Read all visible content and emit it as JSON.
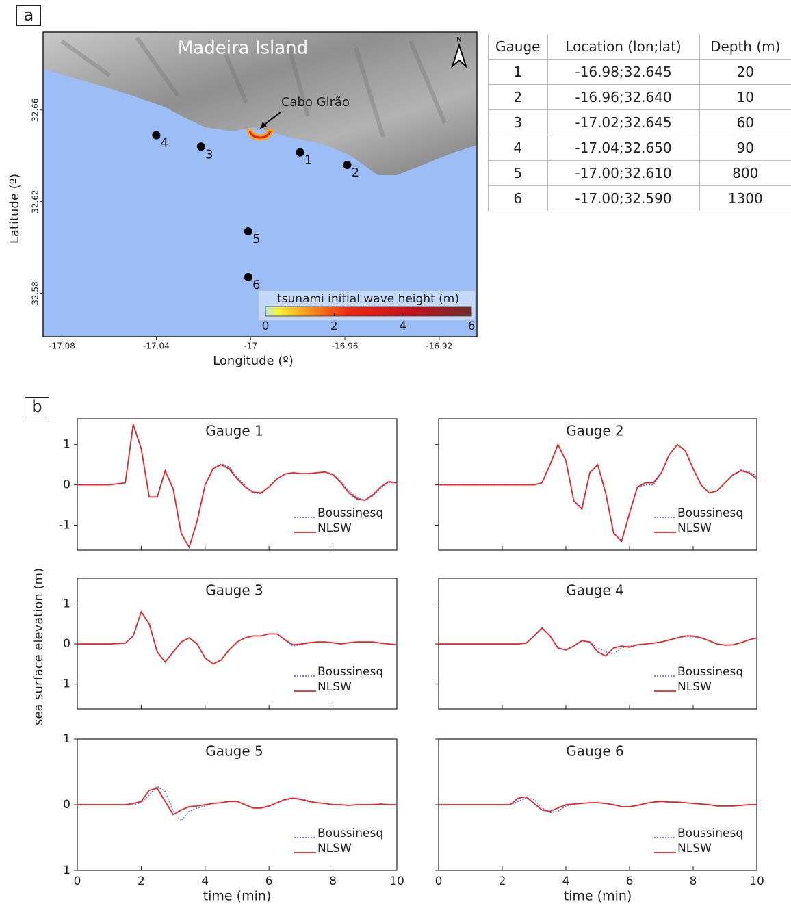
{
  "panel_labels": [
    "a",
    "b"
  ],
  "shared_y_label": "sea surface elevation (m)",
  "table": {
    "header": [
      "Gauge",
      "Location (lon;lat)",
      "Depth (m)"
    ],
    "rows": [
      [
        "1",
        "-16.98;32.645",
        "20"
      ],
      [
        "2",
        "-16.96;32.640",
        "10"
      ],
      [
        "3",
        "-17.02;32.645",
        "60"
      ],
      [
        "4",
        "-17.04;32.650",
        "90"
      ],
      [
        "5",
        "-17.00;32.610",
        "800"
      ],
      [
        "6",
        "-17.00;32.590",
        "1300"
      ]
    ]
  },
  "chart_data": [
    {
      "type": "scatter",
      "title": "Madeira Island",
      "annotation": "Cabo Girão",
      "north_label": "N",
      "x_label": "Longitude (º)",
      "y_label": "Latitude (º)",
      "xlim": [
        -17.088,
        -16.904
      ],
      "ylim": [
        32.561,
        32.694
      ],
      "xticks": [
        -17.08,
        -17.04,
        -17,
        -16.96,
        -16.92
      ],
      "yticks": [
        32.58,
        32.62,
        32.66
      ],
      "color": "#000000",
      "labels": [
        "1",
        "2",
        "3",
        "4",
        "5",
        "6"
      ],
      "x": [
        -16.979,
        -16.959,
        -17.021,
        -17.04,
        -17.001,
        -17.001
      ],
      "y": [
        32.6415,
        32.636,
        32.644,
        32.649,
        32.607,
        32.587
      ],
      "colorbar": {
        "title": "tsunami initial wave height (m)",
        "lim": [
          0,
          6
        ],
        "ticks": [
          0,
          2,
          4,
          6
        ]
      }
    },
    {
      "type": "line",
      "title": "Gauge 1",
      "xlim": [
        0,
        10
      ],
      "xticks": [
        0,
        2,
        4,
        6,
        8,
        10
      ],
      "xtick_labels": false,
      "ylim": [
        -1.62,
        1.64
      ],
      "yticks": [
        -1,
        0,
        1
      ],
      "ytick_labels": true,
      "x": [
        0,
        1,
        1.5,
        1.75,
        2,
        2.25,
        2.5,
        2.75,
        3,
        3.25,
        3.5,
        3.75,
        4,
        4.25,
        4.5,
        4.75,
        5,
        5.25,
        5.5,
        5.75,
        6,
        6.25,
        6.5,
        6.75,
        7,
        7.25,
        7.5,
        7.75,
        8,
        8.25,
        8.5,
        8.75,
        9,
        9.25,
        9.5,
        9.75,
        10
      ],
      "series": [
        {
          "name": "Boussinesq",
          "color": "#5b6cf0",
          "style": "dotted",
          "values": [
            0,
            0,
            0.05,
            1.5,
            0.9,
            -0.3,
            -0.3,
            0.35,
            -0.1,
            -1.2,
            -1.55,
            -0.9,
            0.0,
            0.42,
            0.52,
            0.45,
            0.18,
            -0.02,
            -0.2,
            -0.22,
            -0.05,
            0.15,
            0.27,
            0.3,
            0.28,
            0.28,
            0.3,
            0.32,
            0.27,
            0.08,
            -0.15,
            -0.32,
            -0.38,
            -0.27,
            -0.08,
            0.06,
            0.05
          ]
        },
        {
          "name": "NLSW",
          "color": "#e8262a",
          "style": "solid",
          "values": [
            0,
            0,
            0.05,
            1.5,
            0.9,
            -0.3,
            -0.3,
            0.35,
            -0.1,
            -1.2,
            -1.55,
            -0.9,
            0.0,
            0.4,
            0.5,
            0.4,
            0.15,
            -0.05,
            -0.18,
            -0.2,
            -0.05,
            0.15,
            0.27,
            0.3,
            0.28,
            0.28,
            0.3,
            0.32,
            0.25,
            0.05,
            -0.2,
            -0.35,
            -0.38,
            -0.25,
            -0.05,
            0.08,
            0.05
          ]
        }
      ]
    },
    {
      "type": "line",
      "title": "Gauge 2",
      "xlim": [
        0,
        10
      ],
      "xticks": [
        0,
        2,
        4,
        6,
        8,
        10
      ],
      "xtick_labels": false,
      "ylim": [
        -1.62,
        1.64
      ],
      "yticks": [
        -1,
        0,
        1
      ],
      "ytick_labels": false,
      "x": [
        0,
        1,
        1.5,
        1.75,
        2,
        2.25,
        2.5,
        2.75,
        3,
        3.25,
        3.5,
        3.75,
        4,
        4.25,
        4.5,
        4.75,
        5,
        5.25,
        5.5,
        5.75,
        6,
        6.25,
        6.5,
        6.75,
        7,
        7.25,
        7.5,
        7.75,
        8,
        8.25,
        8.5,
        8.75,
        9,
        9.25,
        9.5,
        9.75,
        10
      ],
      "series": [
        {
          "name": "Boussinesq",
          "color": "#5b6cf0",
          "style": "dotted",
          "values": [
            0,
            0,
            0,
            0,
            0,
            0,
            0,
            0,
            0,
            0.05,
            0.5,
            1.0,
            0.6,
            -0.4,
            -0.55,
            0.3,
            0.5,
            -0.2,
            -1.2,
            -1.4,
            -0.7,
            -0.05,
            0.0,
            0.0,
            0.3,
            0.75,
            1.0,
            0.85,
            0.4,
            0.0,
            -0.2,
            -0.15,
            0.05,
            0.25,
            0.37,
            0.33,
            0.2
          ]
        },
        {
          "name": "NLSW",
          "color": "#e8262a",
          "style": "solid",
          "values": [
            0,
            0,
            0,
            0,
            0,
            0,
            0,
            0,
            0,
            0.05,
            0.5,
            1.0,
            0.6,
            -0.4,
            -0.6,
            0.3,
            0.5,
            -0.2,
            -1.2,
            -1.4,
            -0.7,
            -0.05,
            0.05,
            0.05,
            0.3,
            0.75,
            1.0,
            0.85,
            0.4,
            0.0,
            -0.2,
            -0.15,
            0.05,
            0.25,
            0.35,
            0.3,
            0.15
          ]
        }
      ]
    },
    {
      "type": "line",
      "title": "Gauge 3",
      "xlim": [
        0,
        10
      ],
      "xticks": [
        0,
        2,
        4,
        6,
        8,
        10
      ],
      "xtick_labels": false,
      "ylim": [
        -1.62,
        1.64
      ],
      "yticks": [
        {
          "value": -1,
          "label": "1"
        },
        0,
        1
      ],
      "ytick_labels": true,
      "x": [
        0,
        1,
        1.5,
        1.75,
        2,
        2.25,
        2.5,
        2.75,
        3,
        3.25,
        3.5,
        3.75,
        4,
        4.25,
        4.5,
        4.75,
        5,
        5.25,
        5.5,
        5.75,
        6,
        6.25,
        6.5,
        6.75,
        7,
        7.25,
        7.5,
        7.75,
        8,
        8.25,
        8.5,
        8.75,
        9,
        9.25,
        9.5,
        9.75,
        10
      ],
      "series": [
        {
          "name": "Boussinesq",
          "color": "#5b6cf0",
          "style": "dotted",
          "values": [
            0,
            0,
            0.02,
            0.2,
            0.8,
            0.5,
            -0.2,
            -0.45,
            -0.2,
            0.05,
            0.15,
            0.0,
            -0.35,
            -0.5,
            -0.4,
            -0.15,
            0.05,
            0.15,
            0.2,
            0.2,
            0.25,
            0.25,
            0.1,
            -0.05,
            -0.02,
            0.03,
            0.05,
            0.05,
            0.03,
            0.0,
            0.03,
            0.05,
            0.05,
            0.05,
            0.02,
            0.0,
            -0.02
          ]
        },
        {
          "name": "NLSW",
          "color": "#e8262a",
          "style": "solid",
          "values": [
            0,
            0,
            0.02,
            0.2,
            0.8,
            0.5,
            -0.2,
            -0.45,
            -0.2,
            0.05,
            0.15,
            0.0,
            -0.35,
            -0.5,
            -0.4,
            -0.15,
            0.05,
            0.15,
            0.2,
            0.2,
            0.25,
            0.25,
            0.1,
            -0.02,
            0.0,
            0.03,
            0.05,
            0.05,
            0.03,
            0.0,
            0.03,
            0.05,
            0.05,
            0.05,
            0.02,
            0.0,
            -0.02
          ]
        }
      ]
    },
    {
      "type": "line",
      "title": "Gauge 4",
      "xlim": [
        0,
        10
      ],
      "xticks": [
        0,
        2,
        4,
        6,
        8,
        10
      ],
      "xtick_labels": false,
      "ylim": [
        -1.62,
        1.64
      ],
      "yticks": [
        -1,
        0,
        1
      ],
      "ytick_labels": false,
      "x": [
        0,
        1,
        1.5,
        1.75,
        2,
        2.25,
        2.5,
        2.75,
        3,
        3.25,
        3.5,
        3.75,
        4,
        4.25,
        4.5,
        4.75,
        5,
        5.25,
        5.5,
        5.75,
        6,
        6.25,
        6.5,
        6.75,
        7,
        7.25,
        7.5,
        7.75,
        8,
        8.25,
        8.5,
        8.75,
        9,
        9.25,
        9.5,
        9.75,
        10
      ],
      "series": [
        {
          "name": "Boussinesq",
          "color": "#5b6cf0",
          "style": "dotted",
          "values": [
            0,
            0,
            0,
            0,
            0,
            0,
            0,
            0.02,
            0.2,
            0.4,
            0.2,
            -0.1,
            -0.15,
            -0.05,
            0.08,
            0.05,
            -0.1,
            -0.2,
            -0.25,
            -0.1,
            -0.05,
            -0.02,
            0.0,
            0.02,
            0.05,
            0.1,
            0.15,
            0.18,
            0.18,
            0.15,
            0.08,
            0.0,
            -0.03,
            -0.02,
            0.03,
            0.1,
            0.15
          ]
        },
        {
          "name": "NLSW",
          "color": "#e8262a",
          "style": "solid",
          "values": [
            0,
            0,
            0,
            0,
            0,
            0,
            0,
            0.02,
            0.2,
            0.4,
            0.2,
            -0.1,
            -0.15,
            -0.05,
            0.08,
            0.05,
            -0.2,
            -0.3,
            -0.1,
            -0.05,
            -0.08,
            -0.02,
            0.0,
            0.02,
            0.05,
            0.1,
            0.15,
            0.2,
            0.2,
            0.15,
            0.08,
            0.0,
            -0.03,
            -0.02,
            0.03,
            0.1,
            0.15
          ]
        }
      ]
    },
    {
      "type": "line",
      "title": "Gauge 5",
      "xlim": [
        0,
        10
      ],
      "xticks": [
        0,
        2,
        4,
        6,
        8,
        10
      ],
      "xtick_labels": true,
      "x_label": "time (min)",
      "ylim": [
        -1,
        1
      ],
      "yticks": [
        {
          "value": -1,
          "label": "1"
        },
        0,
        1
      ],
      "ytick_labels": true,
      "x": [
        0,
        1,
        1.5,
        1.75,
        2,
        2.25,
        2.5,
        2.75,
        3,
        3.25,
        3.5,
        3.75,
        4,
        4.25,
        4.5,
        4.75,
        5,
        5.25,
        5.5,
        5.75,
        6,
        6.25,
        6.5,
        6.75,
        7,
        7.25,
        7.5,
        7.75,
        8,
        8.25,
        8.5,
        8.75,
        9,
        9.25,
        9.5,
        9.75,
        10
      ],
      "series": [
        {
          "name": "Boussinesq",
          "color": "#5b6cf0",
          "style": "dotted",
          "values": [
            0,
            0,
            0,
            0.0,
            0.03,
            0.15,
            0.28,
            0.2,
            -0.1,
            -0.25,
            -0.1,
            -0.05,
            -0.02,
            0.02,
            0.03,
            0.05,
            0.05,
            0.0,
            -0.05,
            -0.05,
            -0.02,
            0.03,
            0.07,
            0.1,
            0.09,
            0.06,
            0.03,
            0.02,
            0.0,
            0.0,
            -0.01,
            0.0,
            0.0,
            0.0,
            0.01,
            0.0,
            0.0
          ]
        },
        {
          "name": "NLSW",
          "color": "#e8262a",
          "style": "solid",
          "values": [
            0,
            0,
            0,
            0.02,
            0.05,
            0.22,
            0.25,
            0.05,
            -0.15,
            -0.08,
            -0.03,
            -0.02,
            0.0,
            0.02,
            0.03,
            0.05,
            0.05,
            0.0,
            -0.05,
            -0.05,
            -0.02,
            0.03,
            0.08,
            0.1,
            0.08,
            0.05,
            0.03,
            0.02,
            0.0,
            0.0,
            -0.01,
            0.0,
            0.0,
            0.0,
            0.01,
            0.0,
            0.0
          ]
        }
      ]
    },
    {
      "type": "line",
      "title": "Gauge 6",
      "xlim": [
        0,
        10
      ],
      "xticks": [
        0,
        2,
        4,
        6,
        8,
        10
      ],
      "xtick_labels": true,
      "x_label": "time (min)",
      "ylim": [
        -1,
        1
      ],
      "yticks": [
        -1,
        0,
        1
      ],
      "ytick_labels": false,
      "x": [
        0,
        1,
        1.5,
        1.75,
        2,
        2.25,
        2.5,
        2.75,
        3,
        3.25,
        3.5,
        3.75,
        4,
        4.25,
        4.5,
        4.75,
        5,
        5.25,
        5.5,
        5.75,
        6,
        6.25,
        6.5,
        6.75,
        7,
        7.25,
        7.5,
        7.75,
        8,
        8.25,
        8.5,
        8.75,
        9,
        9.25,
        9.5,
        9.75,
        10
      ],
      "series": [
        {
          "name": "Boussinesq",
          "color": "#5b6cf0",
          "style": "dotted",
          "values": [
            0,
            0,
            0,
            0,
            0,
            0,
            0.05,
            0.1,
            0.08,
            -0.05,
            -0.12,
            -0.1,
            -0.02,
            0.01,
            0.02,
            0.03,
            0.03,
            0.02,
            0.0,
            -0.03,
            -0.03,
            -0.01,
            0.02,
            0.04,
            0.05,
            0.04,
            0.04,
            0.03,
            0.02,
            0.01,
            0.0,
            -0.02,
            -0.02,
            -0.02,
            -0.01,
            0.0,
            0.0
          ]
        },
        {
          "name": "NLSW",
          "color": "#e8262a",
          "style": "solid",
          "values": [
            0,
            0,
            0,
            0,
            0,
            0,
            0.1,
            0.12,
            0.02,
            -0.08,
            -0.1,
            -0.05,
            0.0,
            0.01,
            0.02,
            0.03,
            0.03,
            0.02,
            0.0,
            -0.03,
            -0.03,
            -0.01,
            0.02,
            0.04,
            0.05,
            0.04,
            0.04,
            0.03,
            0.02,
            0.01,
            0.0,
            -0.02,
            -0.02,
            -0.02,
            -0.01,
            0.0,
            0.0
          ]
        }
      ]
    }
  ]
}
